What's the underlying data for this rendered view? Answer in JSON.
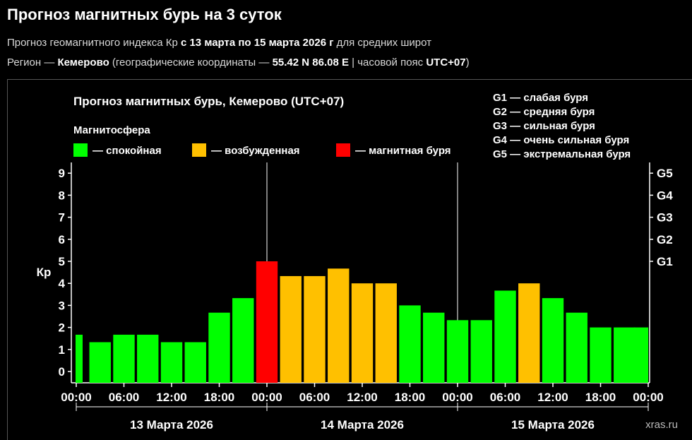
{
  "header": {
    "title": "Прогноз магнитных бурь на 3 суток",
    "line1_prefix": "Прогноз геомагнитного индекса Кр ",
    "line1_dates": "с 13 марта по 15 марта 2026 г",
    "line1_suffix": " для средних широт",
    "line2_prefix": "Регион — ",
    "line2_region": "Кемерово",
    "line2_mid": " (географические координаты — ",
    "line2_coords": "55.42 N 86.08 E",
    "line2_tz_prefix": " | часовой пояс ",
    "line2_tz": "UTC+07",
    "line2_end": ")"
  },
  "chart_data": {
    "type": "bar",
    "title": "Прогноз магнитных бурь, Кемерово (UTC+07)",
    "ylabel": "Кр",
    "ylim": [
      0,
      9
    ],
    "yticks": [
      "0",
      "1",
      "2",
      "3",
      "4",
      "5",
      "6",
      "7",
      "8",
      "9"
    ],
    "storm_levels": [
      {
        "label": "G1",
        "kp": 5
      },
      {
        "label": "G2",
        "kp": 6
      },
      {
        "label": "G3",
        "kp": 7
      },
      {
        "label": "G4",
        "kp": 8
      },
      {
        "label": "G5",
        "kp": 9
      }
    ],
    "xtick_labels": [
      "00:00",
      "06:00",
      "12:00",
      "18:00",
      "00:00",
      "06:00",
      "12:00",
      "18:00",
      "00:00",
      "06:00",
      "12:00",
      "18:00",
      "00:00"
    ],
    "days": [
      "13 Марта 2026",
      "14 Марта 2026",
      "15 Марта 2026"
    ],
    "values": [
      1.67,
      1.33,
      1.67,
      1.67,
      1.33,
      1.33,
      2.67,
      3.33,
      5,
      4.33,
      4.33,
      4.67,
      4,
      4,
      3,
      2.67,
      2.33,
      2.33,
      3.67,
      4,
      3.33,
      2.67,
      2,
      2,
      2
    ],
    "legend_title": "Магнитосфера",
    "legend": [
      {
        "label": "— спокойная",
        "color": "#00ff00"
      },
      {
        "label": "— возбужденная",
        "color": "#ffc000"
      },
      {
        "label": "— магнитная буря",
        "color": "#ff0000"
      }
    ],
    "storm_legend": [
      "G1 — слабая буря",
      "G2 — средняя буря",
      "G3 — сильная буря",
      "G4 — очень сильная буря",
      "G5 — экстремальная буря"
    ],
    "colors": {
      "quiet": "#00ff00",
      "active": "#ffc000",
      "storm": "#ff0000"
    },
    "watermark": "xras.ru"
  }
}
